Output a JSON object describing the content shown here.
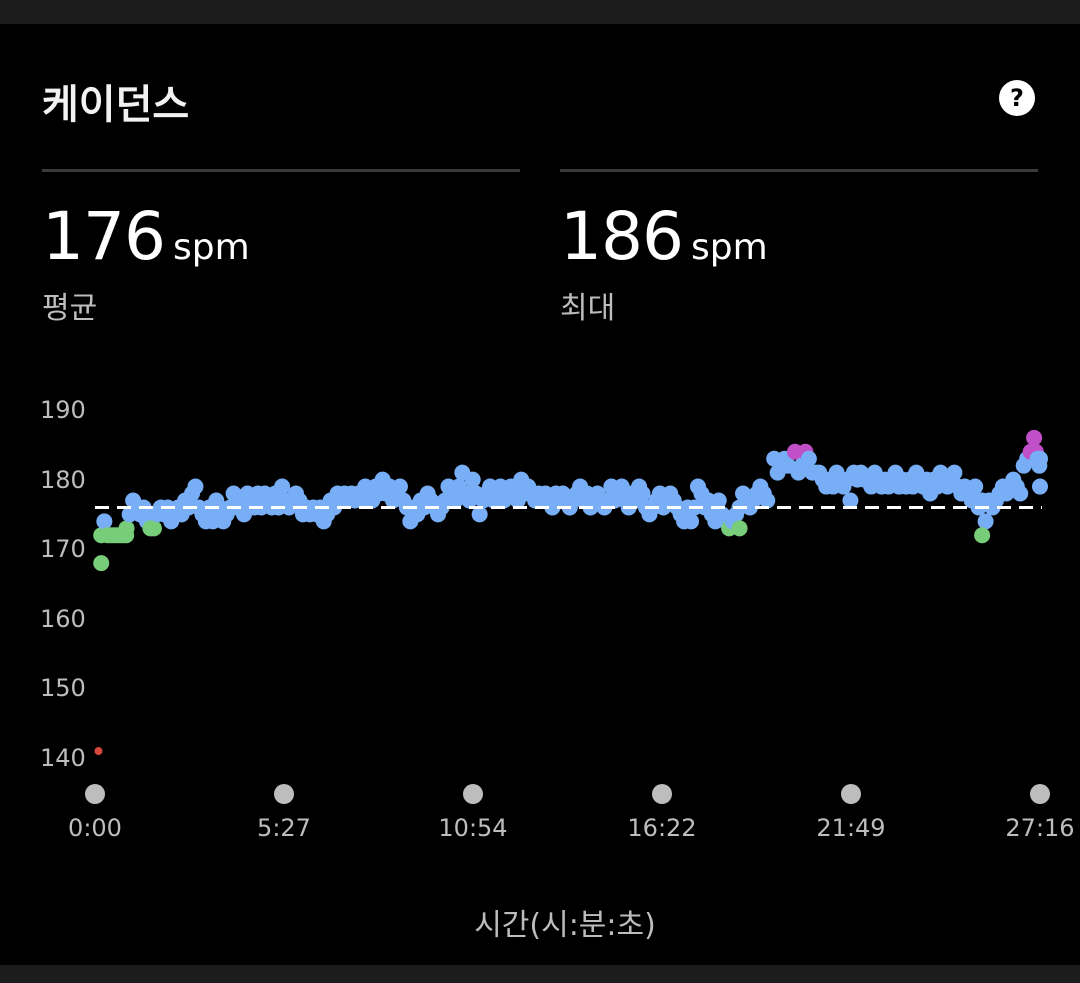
{
  "header": {
    "title": "케이던스",
    "help_icon": "question-icon"
  },
  "stats": [
    {
      "value": "176",
      "unit": "spm",
      "label": "평균"
    },
    {
      "value": "186",
      "unit": "spm",
      "label": "최대"
    }
  ],
  "colors": {
    "normal": "#77aef5",
    "low": "#78cd7a",
    "high": "#c04fc8",
    "very_low": "#d8473b",
    "average_line": "#ffffff",
    "axis_dot": "#bdbdbd"
  },
  "chart_data": {
    "type": "scatter",
    "xlabel": "시간(시:분:초)",
    "ylabel": "",
    "x_unit": "minutes",
    "xlim": [
      0,
      27.27
    ],
    "ylim": [
      140,
      190
    ],
    "yticks": [
      190,
      180,
      170,
      160,
      150,
      140
    ],
    "xtick_labels": [
      "0:00",
      "5:27",
      "10:54",
      "16:22",
      "21:49",
      "27:16"
    ],
    "average_line": 176,
    "grid": false,
    "points": [
      [
        0.18,
        168
      ],
      [
        0.18,
        172
      ],
      [
        0.27,
        174
      ],
      [
        0.36,
        172
      ],
      [
        0.45,
        172
      ],
      [
        0.55,
        172
      ],
      [
        0.64,
        172
      ],
      [
        0.73,
        172
      ],
      [
        0.82,
        172
      ],
      [
        0.91,
        173
      ],
      [
        1.0,
        175
      ],
      [
        1.1,
        177
      ],
      [
        1.2,
        176
      ],
      [
        1.3,
        175
      ],
      [
        1.4,
        176
      ],
      [
        1.5,
        174
      ],
      [
        1.6,
        175
      ],
      [
        1.7,
        173
      ],
      [
        1.8,
        175
      ],
      [
        1.9,
        176
      ],
      [
        2.0,
        175
      ],
      [
        2.1,
        176
      ],
      [
        2.2,
        174
      ],
      [
        2.3,
        175
      ],
      [
        2.4,
        176
      ],
      [
        2.5,
        175
      ],
      [
        2.6,
        177
      ],
      [
        2.7,
        176
      ],
      [
        2.8,
        178
      ],
      [
        2.9,
        179
      ],
      [
        3.0,
        176
      ],
      [
        3.1,
        175
      ],
      [
        3.2,
        174
      ],
      [
        3.3,
        176
      ],
      [
        3.4,
        174
      ],
      [
        3.5,
        177
      ],
      [
        3.6,
        176
      ],
      [
        3.7,
        174
      ],
      [
        3.8,
        175
      ],
      [
        3.9,
        176
      ],
      [
        4.0,
        178
      ],
      [
        4.1,
        176
      ],
      [
        4.2,
        177
      ],
      [
        4.3,
        175
      ],
      [
        4.4,
        178
      ],
      [
        4.5,
        177
      ],
      [
        4.6,
        176
      ],
      [
        4.7,
        178
      ],
      [
        4.8,
        176
      ],
      [
        4.9,
        178
      ],
      [
        5.0,
        177
      ],
      [
        5.1,
        176
      ],
      [
        5.2,
        178
      ],
      [
        5.3,
        176
      ],
      [
        5.4,
        179
      ],
      [
        5.5,
        177
      ],
      [
        5.6,
        176
      ],
      [
        5.7,
        177
      ],
      [
        5.8,
        178
      ],
      [
        5.9,
        177
      ],
      [
        6.0,
        175
      ],
      [
        6.1,
        176
      ],
      [
        6.2,
        175
      ],
      [
        6.3,
        176
      ],
      [
        6.4,
        175
      ],
      [
        6.5,
        176
      ],
      [
        6.6,
        174
      ],
      [
        6.7,
        175
      ],
      [
        6.8,
        177
      ],
      [
        6.9,
        176
      ],
      [
        7.0,
        178
      ],
      [
        7.1,
        177
      ],
      [
        7.2,
        178
      ],
      [
        7.3,
        177
      ],
      [
        7.4,
        178
      ],
      [
        7.5,
        177
      ],
      [
        7.6,
        178
      ],
      [
        7.7,
        177
      ],
      [
        7.8,
        179
      ],
      [
        7.9,
        178
      ],
      [
        8.0,
        177
      ],
      [
        8.1,
        179
      ],
      [
        8.2,
        178
      ],
      [
        8.3,
        180
      ],
      [
        8.4,
        178
      ],
      [
        8.5,
        179
      ],
      [
        8.6,
        177
      ],
      [
        8.7,
        178
      ],
      [
        8.8,
        179
      ],
      [
        8.9,
        177
      ],
      [
        9.0,
        176
      ],
      [
        9.1,
        174
      ],
      [
        9.2,
        176
      ],
      [
        9.3,
        175
      ],
      [
        9.4,
        177
      ],
      [
        9.5,
        176
      ],
      [
        9.6,
        178
      ],
      [
        9.7,
        177
      ],
      [
        9.8,
        176
      ],
      [
        9.9,
        175
      ],
      [
        10.0,
        176
      ],
      [
        10.1,
        177
      ],
      [
        10.2,
        179
      ],
      [
        10.3,
        178
      ],
      [
        10.4,
        177
      ],
      [
        10.5,
        179
      ],
      [
        10.6,
        181
      ],
      [
        10.7,
        178
      ],
      [
        10.8,
        177
      ],
      [
        10.9,
        180
      ],
      [
        11.0,
        178
      ],
      [
        11.1,
        175
      ],
      [
        11.2,
        177
      ],
      [
        11.3,
        178
      ],
      [
        11.4,
        179
      ],
      [
        11.5,
        177
      ],
      [
        11.6,
        178
      ],
      [
        11.7,
        179
      ],
      [
        11.8,
        177
      ],
      [
        11.9,
        178
      ],
      [
        12.0,
        179
      ],
      [
        12.1,
        178
      ],
      [
        12.2,
        177
      ],
      [
        12.3,
        180
      ],
      [
        12.4,
        178
      ],
      [
        12.5,
        179
      ],
      [
        12.6,
        178
      ],
      [
        12.7,
        177
      ],
      [
        12.8,
        178
      ],
      [
        12.9,
        177
      ],
      [
        13.0,
        178
      ],
      [
        13.1,
        177
      ],
      [
        13.2,
        176
      ],
      [
        13.3,
        178
      ],
      [
        13.4,
        177
      ],
      [
        13.5,
        178
      ],
      [
        13.6,
        177
      ],
      [
        13.7,
        176
      ],
      [
        13.8,
        177
      ],
      [
        13.9,
        178
      ],
      [
        14.0,
        179
      ],
      [
        14.1,
        177
      ],
      [
        14.2,
        178
      ],
      [
        14.3,
        176
      ],
      [
        14.4,
        177
      ],
      [
        14.5,
        178
      ],
      [
        14.6,
        177
      ],
      [
        14.7,
        176
      ],
      [
        14.8,
        177
      ],
      [
        14.9,
        179
      ],
      [
        15.0,
        177
      ],
      [
        15.1,
        178
      ],
      [
        15.2,
        179
      ],
      [
        15.3,
        177
      ],
      [
        15.4,
        176
      ],
      [
        15.5,
        178
      ],
      [
        15.6,
        177
      ],
      [
        15.7,
        179
      ],
      [
        15.8,
        178
      ],
      [
        15.9,
        176
      ],
      [
        16.0,
        175
      ],
      [
        16.1,
        176
      ],
      [
        16.2,
        177
      ],
      [
        16.3,
        178
      ],
      [
        16.4,
        176
      ],
      [
        16.5,
        177
      ],
      [
        16.6,
        178
      ],
      [
        16.7,
        177
      ],
      [
        16.8,
        176
      ],
      [
        16.9,
        175
      ],
      [
        17.0,
        174
      ],
      [
        17.1,
        176
      ],
      [
        17.2,
        174
      ],
      [
        17.3,
        176
      ],
      [
        17.4,
        179
      ],
      [
        17.5,
        178
      ],
      [
        17.6,
        176
      ],
      [
        17.7,
        177
      ],
      [
        17.8,
        175
      ],
      [
        17.9,
        174
      ],
      [
        18.0,
        177
      ],
      [
        18.1,
        175
      ],
      [
        18.2,
        174
      ],
      [
        18.3,
        173
      ],
      [
        18.4,
        174
      ],
      [
        18.5,
        175
      ],
      [
        18.6,
        176
      ],
      [
        18.7,
        178
      ],
      [
        18.8,
        177
      ],
      [
        18.9,
        176
      ],
      [
        19.0,
        177
      ],
      [
        19.1,
        178
      ],
      [
        19.2,
        179
      ],
      [
        19.3,
        178
      ],
      [
        19.4,
        177
      ],
      [
        19.6,
        183
      ],
      [
        19.7,
        181
      ],
      [
        19.8,
        182
      ],
      [
        19.9,
        183
      ],
      [
        20.0,
        182
      ],
      [
        20.2,
        184
      ],
      [
        20.3,
        181
      ],
      [
        20.4,
        182
      ],
      [
        20.5,
        184
      ],
      [
        20.6,
        183
      ],
      [
        20.7,
        181
      ],
      [
        20.8,
        181
      ],
      [
        20.9,
        181
      ],
      [
        21.0,
        180
      ],
      [
        21.1,
        179
      ],
      [
        21.2,
        180
      ],
      [
        21.3,
        179
      ],
      [
        21.4,
        181
      ],
      [
        21.5,
        180
      ],
      [
        21.6,
        179
      ],
      [
        21.7,
        180
      ],
      [
        21.8,
        177
      ],
      [
        21.9,
        181
      ],
      [
        22.0,
        180
      ],
      [
        22.1,
        181
      ],
      [
        22.2,
        180
      ],
      [
        22.3,
        180
      ],
      [
        22.4,
        179
      ],
      [
        22.5,
        181
      ],
      [
        22.6,
        180
      ],
      [
        22.7,
        179
      ],
      [
        22.8,
        180
      ],
      [
        22.9,
        179
      ],
      [
        23.0,
        180
      ],
      [
        23.1,
        181
      ],
      [
        23.2,
        179
      ],
      [
        23.3,
        180
      ],
      [
        23.4,
        179
      ],
      [
        23.5,
        180
      ],
      [
        23.6,
        179
      ],
      [
        23.7,
        181
      ],
      [
        23.8,
        180
      ],
      [
        23.9,
        179
      ],
      [
        24.0,
        180
      ],
      [
        24.1,
        178
      ],
      [
        24.2,
        180
      ],
      [
        24.3,
        179
      ],
      [
        24.4,
        181
      ],
      [
        24.5,
        180
      ],
      [
        24.6,
        179
      ],
      [
        24.7,
        180
      ],
      [
        24.8,
        181
      ],
      [
        24.9,
        179
      ],
      [
        25.0,
        178
      ],
      [
        25.1,
        179
      ],
      [
        25.2,
        178
      ],
      [
        25.3,
        177
      ],
      [
        25.4,
        179
      ],
      [
        25.5,
        176
      ],
      [
        25.6,
        177
      ],
      [
        25.7,
        174
      ],
      [
        25.8,
        177
      ],
      [
        25.9,
        176
      ],
      [
        26.0,
        177
      ],
      [
        26.1,
        178
      ],
      [
        26.2,
        179
      ],
      [
        26.3,
        178
      ],
      [
        26.4,
        179
      ],
      [
        26.5,
        180
      ],
      [
        26.6,
        179
      ],
      [
        26.7,
        178
      ],
      [
        26.8,
        182
      ],
      [
        26.9,
        183
      ],
      [
        27.0,
        184
      ],
      [
        27.1,
        186
      ],
      [
        27.15,
        184
      ],
      [
        27.2,
        183
      ],
      [
        27.25,
        182
      ],
      [
        27.27,
        179
      ],
      [
        27.27,
        183
      ],
      [
        0.9,
        172
      ],
      [
        1.6,
        173
      ],
      [
        18.6,
        173
      ],
      [
        25.6,
        172
      ],
      [
        0.1,
        141
      ]
    ]
  }
}
